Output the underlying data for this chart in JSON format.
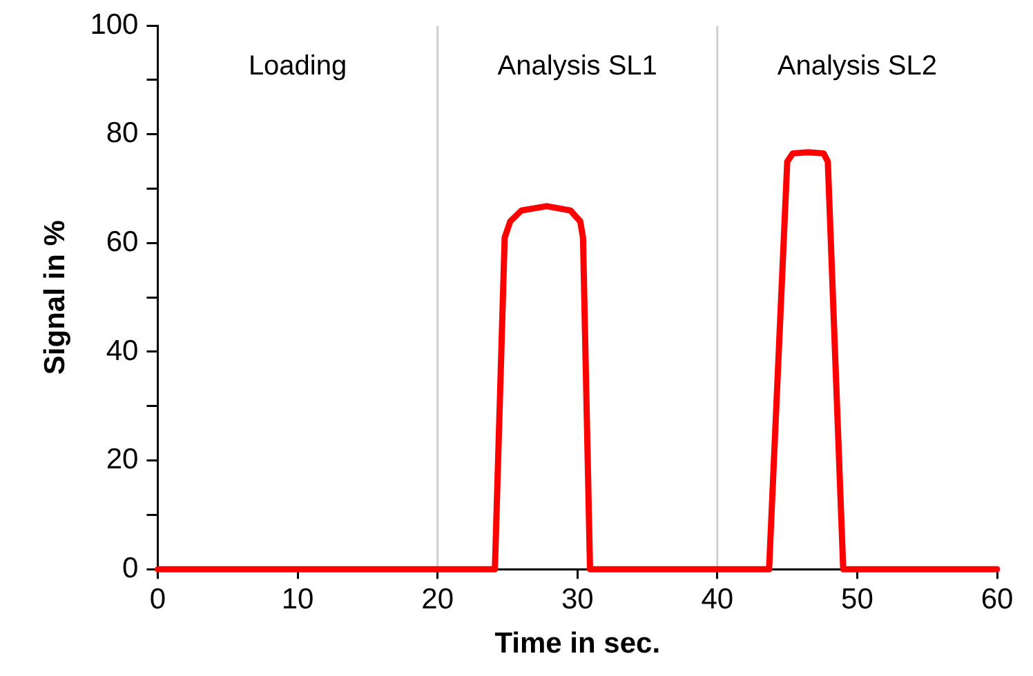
{
  "chart_data": {
    "type": "line",
    "xlabel": "Time in sec.",
    "ylabel": "Signal in %",
    "series": [
      {
        "color": "#ff0000",
        "x": [
          0,
          24.1,
          24.8,
          25.2,
          26,
          27.8,
          29.5,
          30.2,
          30.4,
          30.9,
          43.7,
          45,
          45.4,
          46.5,
          47.6,
          47.9,
          49,
          60
        ],
        "values": [
          0,
          0,
          61,
          64,
          66,
          66.8,
          66,
          64,
          61,
          0,
          0,
          75,
          76.5,
          76.7,
          76.5,
          75,
          0,
          0
        ]
      }
    ],
    "xlim": [
      0,
      60
    ],
    "xticks": [
      0,
      10,
      20,
      30,
      40,
      50,
      60
    ],
    "ylim": [
      0,
      100
    ],
    "yticks": [
      0,
      {
        "value": 10,
        "label": null
      },
      20,
      {
        "value": 30,
        "label": null
      },
      40,
      {
        "value": 50,
        "label": null
      },
      60,
      {
        "value": 70,
        "label": null
      },
      80,
      {
        "value": 90,
        "label": null
      },
      100
    ],
    "annotations": [
      "Loading",
      "Analysis SL1",
      "Analysis SL2"
    ],
    "ref_lines": [
      {
        "axis": "x",
        "value": 20,
        "color": "#d0d0d0"
      },
      {
        "axis": "x",
        "value": 40,
        "color": "#d0d0d0"
      }
    ],
    "grid": false,
    "legend": false,
    "marker": "none",
    "line_style": "solid"
  }
}
